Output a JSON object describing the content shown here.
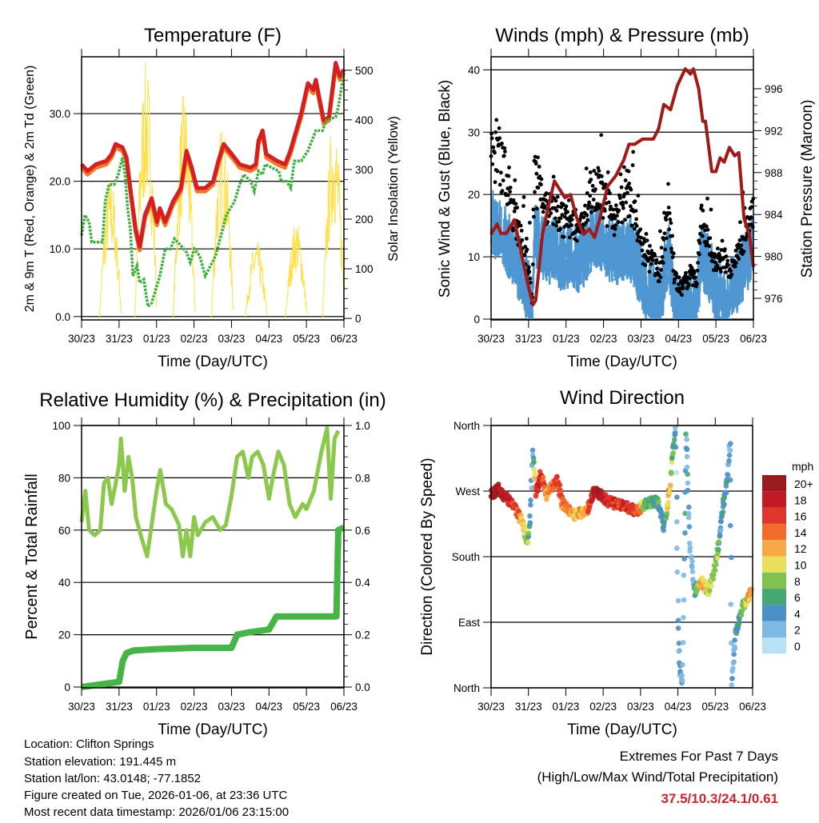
{
  "chart_data": [
    {
      "type": "line",
      "title": "Temperature (F)",
      "xlabel": "Time (Day/UTC)",
      "ylabel": "2m & 9m T (Red, Orange) & 2m Td (Green)",
      "ylabel_right": "Solar Insolation (Yellow)",
      "x_ticks": [
        "30/23",
        "31/23",
        "01/23",
        "02/23",
        "03/23",
        "04/23",
        "05/23",
        "06/23"
      ],
      "xlim": [
        0,
        7
      ],
      "ylim": [
        -0.5,
        38.4
      ],
      "ylim_right": [
        -3,
        527
      ],
      "y_ticks": [
        "0.0",
        "10.0",
        "20.0",
        "30.0"
      ],
      "y_tick_values": [
        0,
        10,
        20,
        30
      ],
      "y_ticks_right": [
        "0",
        "100",
        "200",
        "300",
        "400",
        "500"
      ],
      "y_tick_values_right": [
        0,
        100,
        200,
        300,
        400,
        500
      ],
      "grid": true,
      "series": [
        {
          "name": "2m T",
          "color": "#d42020",
          "x": [
            0,
            0.16,
            0.38,
            0.66,
            0.8,
            0.91,
            1.09,
            1.2,
            1.3,
            1.44,
            1.55,
            1.69,
            1.87,
            2.01,
            2.09,
            2.23,
            2.44,
            2.65,
            2.8,
            2.94,
            3.08,
            3.3,
            3.51,
            3.65,
            3.79,
            4.01,
            4.22,
            4.51,
            4.65,
            4.72,
            4.83,
            4.93,
            5.22,
            5.43,
            5.57,
            5.86,
            6.04,
            6.18,
            6.25,
            6.46,
            6.6,
            6.68,
            6.78,
            6.89,
            7.0
          ],
          "y": [
            22.5,
            21.5,
            22.5,
            23,
            24,
            25.5,
            25,
            23.5,
            19,
            13,
            10.3,
            15,
            17.5,
            14,
            16,
            14,
            17,
            19,
            24.5,
            22,
            19,
            19,
            20,
            23,
            25.5,
            24,
            22.5,
            22,
            22.5,
            26,
            27.5,
            24,
            23,
            22.5,
            24.5,
            30,
            34.5,
            33.5,
            35,
            29,
            29.5,
            33,
            37.5,
            35.5,
            36.5
          ]
        },
        {
          "name": "9m T",
          "color": "#f07a2a",
          "offset": -0.5
        },
        {
          "name": "2m Td",
          "color": "#3cb03c",
          "x": [
            0,
            0.09,
            0.2,
            0.27,
            0.38,
            0.56,
            0.63,
            0.73,
            0.87,
            0.98,
            1.09,
            1.16,
            1.23,
            1.3,
            1.37,
            1.48,
            1.55,
            1.66,
            1.77,
            1.87,
            1.98,
            2.09,
            2.23,
            2.37,
            2.48,
            2.65,
            2.8,
            2.9,
            3.01,
            3.15,
            3.3,
            3.44,
            3.58,
            3.72,
            3.86,
            4.08,
            4.22,
            4.33,
            4.51,
            4.61,
            4.72,
            4.83,
            4.9,
            5.08,
            5.26,
            5.33,
            5.47,
            5.58,
            5.68,
            5.86,
            6.04,
            6.25,
            6.43,
            6.53,
            6.78,
            6.85,
            7.0
          ],
          "y": [
            12,
            15,
            14,
            11,
            11,
            11,
            17,
            19.5,
            19.5,
            21,
            23.5,
            21,
            16,
            13,
            6,
            7.5,
            5,
            5.5,
            1.5,
            2,
            4,
            6,
            10,
            10,
            11.5,
            10.5,
            9.5,
            8,
            10,
            9,
            6,
            7.5,
            9,
            12,
            15,
            17,
            19.5,
            21,
            20,
            18.5,
            21.5,
            21,
            22.5,
            22,
            21.5,
            20,
            20,
            19,
            23,
            23,
            24.5,
            27.5,
            27.5,
            29,
            29.5,
            31,
            36
          ]
        },
        {
          "name": "Solar Insolation",
          "color": "#ffe04a",
          "peak_days": [
            0.77,
            1.72,
            2.74,
            3.76,
            4.66,
            5.73,
            6.73
          ],
          "peak_values": [
            290,
            520,
            460,
            400,
            160,
            200,
            410
          ]
        }
      ]
    },
    {
      "type": "scatter",
      "title": "Winds (mph) & Pressure (mb)",
      "xlabel": "Time (Day/UTC)",
      "ylabel": "Sonic Wind & Gust (Blue, Black)",
      "ylabel_right": "Station Pressure (Maroon)",
      "x_ticks": [
        "30/23",
        "31/23",
        "01/23",
        "02/23",
        "03/23",
        "04/23",
        "05/23",
        "06/23"
      ],
      "xlim": [
        0,
        7
      ],
      "ylim": [
        -0.13,
        42.1
      ],
      "ylim_right": [
        973.94,
        999.05
      ],
      "y_ticks": [
        "0",
        "10",
        "20",
        "30",
        "40"
      ],
      "y_tick_values": [
        0,
        10,
        20,
        30,
        40
      ],
      "y_ticks_right": [
        "976",
        "980",
        "984",
        "988",
        "992",
        "996"
      ],
      "y_tick_values_right": [
        976,
        980,
        984,
        988,
        992,
        996
      ],
      "grid": true,
      "wind": {
        "color_wind": "#4f96d2",
        "color_gust": "#000000",
        "x": [
          0,
          0.2,
          0.4,
          0.6,
          0.8,
          1.0,
          1.1,
          1.15,
          1.3,
          1.5,
          1.7,
          1.9,
          2.1,
          2.3,
          2.5,
          2.7,
          2.9,
          3.1,
          3.3,
          3.5,
          3.7,
          3.9,
          4.1,
          4.3,
          4.5,
          4.75,
          4.9,
          5.1,
          5.3,
          5.5,
          5.6,
          5.8,
          6.0,
          6.2,
          6.4,
          6.6,
          6.8,
          7.0
        ],
        "wind": [
          16,
          15,
          13,
          11,
          8,
          5,
          1,
          14,
          13,
          11,
          12,
          10,
          11,
          10,
          11,
          14,
          14,
          12,
          11,
          12,
          12,
          9,
          6,
          5,
          4,
          11,
          3,
          2,
          4,
          3,
          11,
          9,
          5,
          5,
          5,
          7,
          10,
          12
        ],
        "gust": [
          30,
          28,
          24,
          18,
          14,
          9,
          3,
          26,
          22,
          18,
          19,
          17,
          16,
          16,
          17,
          23,
          22,
          19,
          17,
          20,
          22,
          15,
          11,
          10,
          8,
          19,
          7,
          5,
          8,
          7,
          17,
          13,
          9,
          10,
          9,
          11,
          14,
          18
        ]
      },
      "pressure": {
        "color": "#a01a1a",
        "x": [
          0,
          0.16,
          0.26,
          0.41,
          0.62,
          0.83,
          1.01,
          1.12,
          1.19,
          1.37,
          1.55,
          1.69,
          1.83,
          1.97,
          2.12,
          2.29,
          2.47,
          2.62,
          2.76,
          2.9,
          3.11,
          3.33,
          3.54,
          3.68,
          3.83,
          4.04,
          4.33,
          4.47,
          4.61,
          4.79,
          4.97,
          5.18,
          5.32,
          5.4,
          5.54,
          5.65,
          5.72,
          5.89,
          6.0,
          6.11,
          6.22,
          6.36,
          6.5,
          6.61,
          6.75,
          6.89,
          7.0
        ],
        "y": [
          982.1,
          983.1,
          982.2,
          982.2,
          983.5,
          979.9,
          976.9,
          975.4,
          975.8,
          982.1,
          985.1,
          987.2,
          986.4,
          985.6,
          985.9,
          983.6,
          982.1,
          982.6,
          981.8,
          983.6,
          986.7,
          987.7,
          989.2,
          990.7,
          990.7,
          991.2,
          991.2,
          992.2,
          994.5,
          994.0,
          996.3,
          997.9,
          997.4,
          997.9,
          996.0,
          992.9,
          992.9,
          988.1,
          988.1,
          989.4,
          989.0,
          990.4,
          989.6,
          989.9,
          983.6,
          982.1,
          979.0
        ]
      }
    },
    {
      "type": "line",
      "title": "Relative Humidity (%) & Precipitation (in)",
      "xlabel": "Time (Day/UTC)",
      "ylabel": "Percent & Total Rainfall",
      "x_ticks": [
        "30/23",
        "31/23",
        "01/23",
        "02/23",
        "03/23",
        "04/23",
        "05/23",
        "06/23"
      ],
      "xlim": [
        0,
        7
      ],
      "ylim": [
        -0.3,
        100
      ],
      "ylim_right": [
        -0.003,
        1.0
      ],
      "y_ticks": [
        "0",
        "20",
        "40",
        "60",
        "80",
        "100"
      ],
      "y_tick_values": [
        0,
        20,
        40,
        60,
        80,
        100
      ],
      "y_ticks_right": [
        "0.0",
        "0.2",
        "0.4",
        "0.6",
        "0.8",
        "1.0"
      ],
      "y_tick_values_right": [
        0,
        0.2,
        0.4,
        0.6,
        0.8,
        1.0
      ],
      "grid": true,
      "series": [
        {
          "name": "Relative Humidity",
          "color": "#8cc84b",
          "x": [
            0,
            0.1,
            0.2,
            0.35,
            0.5,
            0.6,
            0.7,
            0.8,
            0.9,
            1.0,
            1.05,
            1.15,
            1.25,
            1.35,
            1.45,
            1.6,
            1.75,
            1.85,
            2.0,
            2.1,
            2.25,
            2.4,
            2.6,
            2.7,
            2.8,
            2.9,
            3.0,
            3.1,
            3.3,
            3.5,
            3.7,
            3.85,
            4.0,
            4.15,
            4.3,
            4.45,
            4.55,
            4.7,
            4.85,
            5.0,
            5.1,
            5.25,
            5.4,
            5.55,
            5.7,
            5.9,
            6.0,
            6.2,
            6.4,
            6.55,
            6.65,
            6.75,
            6.85
          ],
          "y": [
            63,
            75,
            60,
            58,
            60,
            78,
            80,
            70,
            77,
            85,
            95,
            75,
            88,
            80,
            65,
            57,
            50,
            60,
            75,
            83,
            70,
            68,
            62,
            50,
            60,
            50,
            65,
            58,
            63,
            65,
            60,
            62,
            73,
            88,
            90,
            80,
            88,
            90,
            85,
            72,
            80,
            90,
            85,
            70,
            65,
            70,
            68,
            75,
            90,
            99,
            72,
            95,
            98
          ]
        },
        {
          "name": "Total Precipitation",
          "color": "#46b446",
          "axis": "right",
          "x": [
            0,
            1.0,
            1.1,
            1.2,
            1.4,
            2.0,
            3.0,
            4.0,
            4.15,
            4.5,
            5.0,
            5.2,
            6.8,
            6.85,
            7.0
          ],
          "y": [
            0,
            0.02,
            0.1,
            0.13,
            0.14,
            0.145,
            0.15,
            0.15,
            0.2,
            0.21,
            0.22,
            0.27,
            0.27,
            0.6,
            0.61
          ]
        }
      ]
    },
    {
      "type": "scatter",
      "title": "Wind Direction",
      "xlabel": "Time (Day/UTC)",
      "ylabel": "Direction (Colored By Speed)",
      "x_ticks": [
        "30/23",
        "31/23",
        "01/23",
        "02/23",
        "03/23",
        "04/23",
        "05/23",
        "06/23"
      ],
      "xlim": [
        0,
        7
      ],
      "ylim": [
        0,
        360
      ],
      "y_ticks": [
        "North",
        "East",
        "South",
        "West",
        "North"
      ],
      "y_tick_values": [
        0,
        90,
        180,
        270,
        360
      ],
      "grid": true,
      "track": {
        "x": [
          0,
          0.2,
          0.48,
          0.7,
          0.84,
          0.97,
          1.05,
          1.11,
          1.2,
          1.34,
          1.48,
          1.77,
          1.91,
          2.2,
          2.55,
          2.77,
          3.12,
          3.55,
          3.9,
          4.12,
          4.48,
          4.62,
          4.76,
          4.87,
          4.94,
          5.01,
          5.05,
          5.12,
          5.22,
          5.33,
          5.44,
          5.62,
          5.83,
          6.04,
          6.15,
          6.29,
          6.4,
          6.44,
          6.54,
          6.72,
          6.97
        ],
        "direction": [
          265,
          273,
          256,
          241,
          227,
          198,
          234,
          326,
          267,
          293,
          264,
          286,
          253,
          238,
          242,
          271,
          256,
          249,
          242,
          253,
          256,
          220,
          264,
          330,
          359,
          88,
          26,
          7,
          352,
          191,
          132,
          147,
          132,
          176,
          227,
          275,
          337,
          7,
          73,
          110,
          132
        ],
        "speed": [
          18,
          20,
          18,
          15,
          11,
          8,
          4,
          2,
          16,
          17,
          12,
          16,
          14,
          12,
          12,
          20,
          17,
          16,
          16,
          7,
          6,
          3,
          12,
          6,
          3,
          2,
          3,
          3,
          5,
          2,
          4,
          13,
          9,
          8,
          4,
          5,
          2,
          2,
          4,
          7,
          14
        ]
      },
      "legend": {
        "title": "mph",
        "labels": [
          "20+",
          "18",
          "16",
          "14",
          "12",
          "10",
          "8",
          "6",
          "4",
          "2",
          "0"
        ],
        "colors": [
          "#9b1b1e",
          "#c01b23",
          "#e0352a",
          "#f26b2a",
          "#f9a847",
          "#e8e05a",
          "#7fc24f",
          "#45a772",
          "#4a8fc6",
          "#7fb8e2",
          "#b9e1f5"
        ],
        "placement": "right"
      }
    }
  ],
  "info": {
    "location": "Location: Clifton Springs",
    "elevation": "Station elevation: 191.445 m",
    "latlon": "Station lat/lon: 43.0148; -77.1852",
    "created": "Figure created on Tue, 2026-01-06, at 23:36 UTC",
    "recent": "Most recent data timestamp: 2026/01/06 23:15:00"
  },
  "extremes": {
    "title": "Extremes For Past 7 Days",
    "subtitle": "(High/Low/Max Wind/Total Precipitation)",
    "values": "37.5/10.3/24.1/0.61"
  }
}
